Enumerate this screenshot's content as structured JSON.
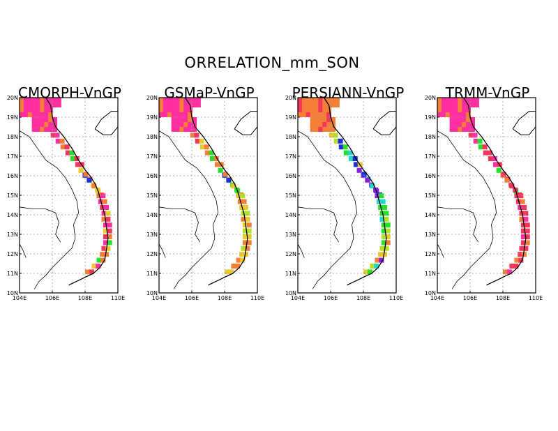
{
  "figure": {
    "title": "ORRELATION_mm_SON",
    "lat_labels": [
      "20N",
      "19N",
      "18N",
      "17N",
      "16N",
      "15N",
      "14N",
      "13N",
      "12N",
      "11N",
      "10N"
    ],
    "lon_labels": [
      "104E",
      "106E",
      "108E",
      "110E"
    ]
  },
  "colors": {
    "magenta": "#ff2fa0",
    "red": "#f4365a",
    "orange": "#f57f36",
    "yellow": "#eaca2c",
    "lime": "#b2e02a",
    "green": "#28e028",
    "cyan": "#1cd9c8",
    "blue": "#1e2ede",
    "purple": "#8a1ee0",
    "coast": "#000000",
    "grid": "#999999"
  },
  "panels": [
    {
      "id": "cmorph",
      "title": "CMORPH-VnGP",
      "cells": {
        "north": "magenta",
        "mid": [
          "red",
          "magenta",
          "orange",
          "red",
          "green",
          "red"
        ],
        "bend": [
          "yellow",
          "orange",
          "blue",
          "orange",
          "yellow"
        ],
        "south": [
          "orange",
          "magenta",
          "red",
          "magenta",
          "orange",
          "magenta",
          "yellow",
          "red",
          "magenta",
          "red",
          "orange",
          "green",
          "yellow",
          "orange"
        ]
      }
    },
    {
      "id": "gsmap",
      "title": "GSMaP-VnGP",
      "cells": {
        "north": "magenta",
        "mid": [
          "orange",
          "red",
          "yellow",
          "orange",
          "green",
          "orange"
        ],
        "bend": [
          "green",
          "orange",
          "blue",
          "yellow",
          "green"
        ],
        "south": [
          "yellow",
          "orange",
          "yellow",
          "lime",
          "orange",
          "yellow",
          "lime",
          "yellow",
          "orange",
          "lime",
          "yellow",
          "orange",
          "orange",
          "yellow"
        ]
      }
    },
    {
      "id": "persiann",
      "title": "PERSIANN-VnGP",
      "cells": {
        "north": "orange",
        "mid": [
          "yellow",
          "lime",
          "blue",
          "green",
          "cyan",
          "blue"
        ],
        "bend": [
          "purple",
          "blue",
          "purple",
          "cyan",
          "purple"
        ],
        "south": [
          "purple",
          "cyan",
          "green",
          "green",
          "cyan",
          "green",
          "green",
          "lime",
          "green",
          "lime",
          "yellow",
          "orange",
          "lime",
          "yellow"
        ]
      }
    },
    {
      "id": "trmm",
      "title": "TRMM-VnGP",
      "cells": {
        "north": "magenta",
        "mid": [
          "red",
          "magenta",
          "green",
          "red",
          "red",
          "magenta"
        ],
        "bend": [
          "green",
          "red",
          "orange",
          "red",
          "red"
        ],
        "south": [
          "red",
          "red",
          "magenta",
          "red",
          "orange",
          "red",
          "red",
          "magenta",
          "red",
          "red",
          "red",
          "orange",
          "red",
          "orange"
        ]
      }
    }
  ]
}
